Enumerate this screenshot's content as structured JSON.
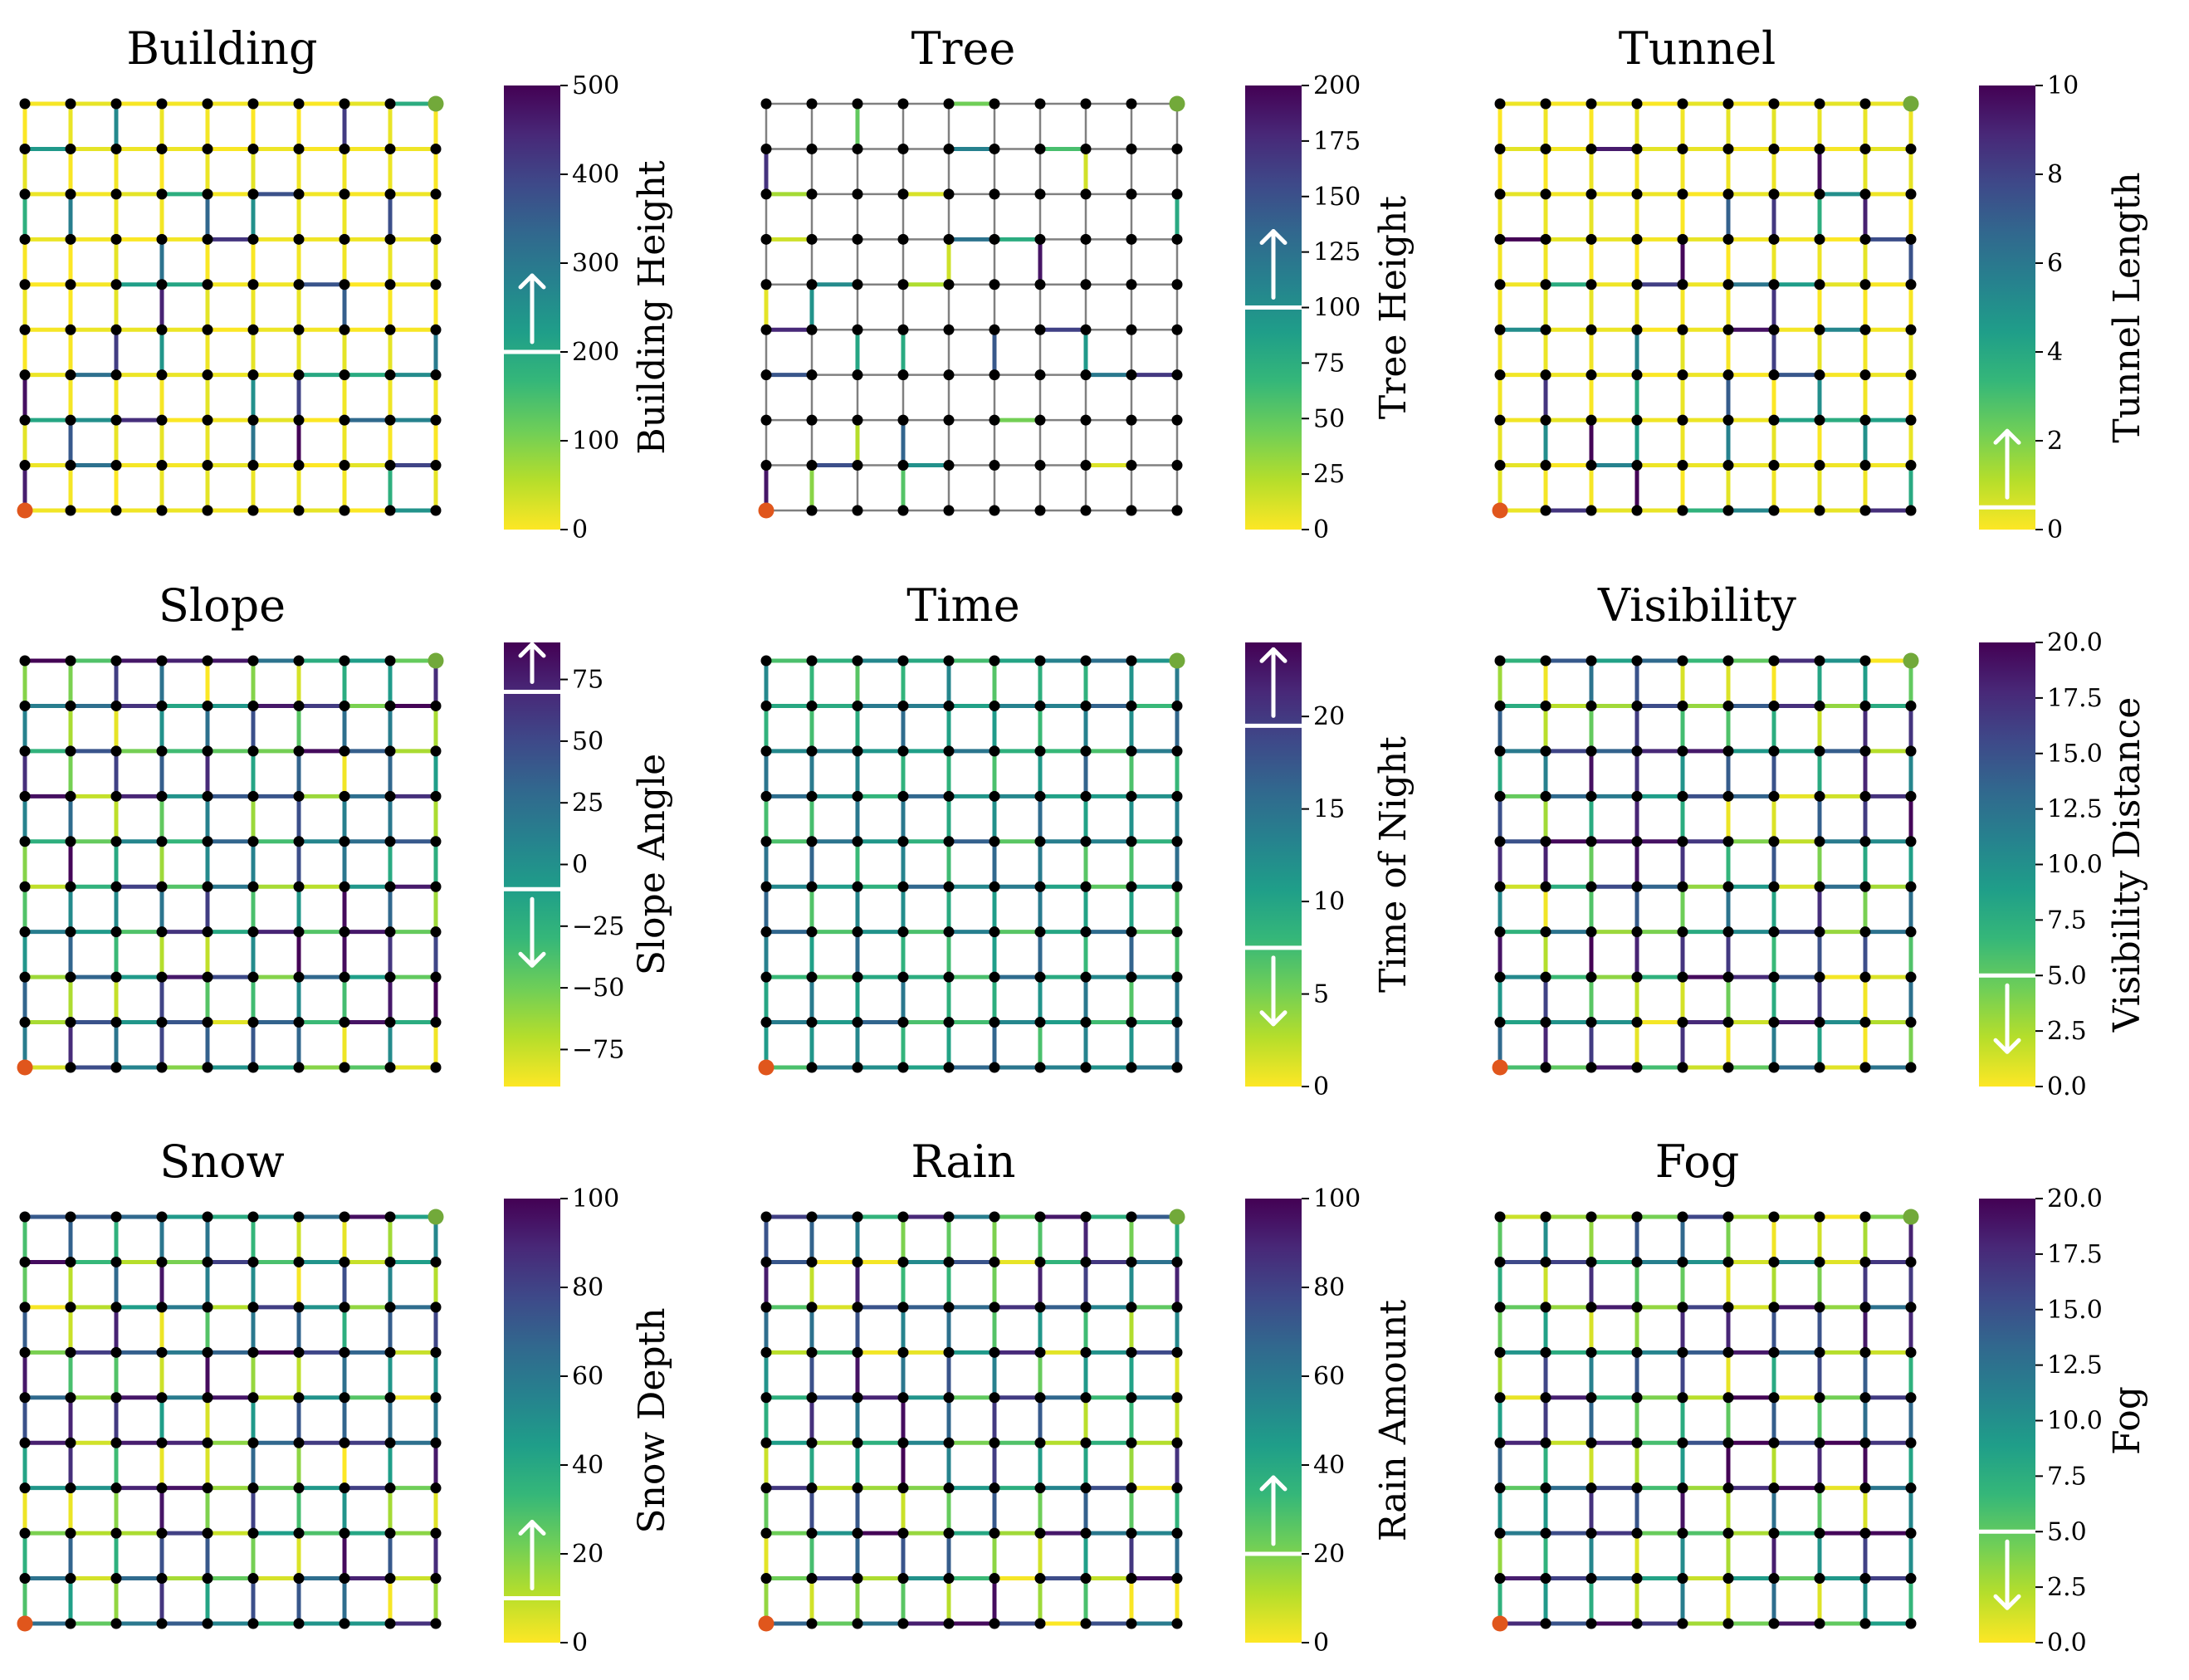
{
  "chart_data": [
    {
      "type": "heatmap",
      "title": "Building",
      "cbar_label": "Building Height",
      "vmin": 0,
      "vmax": 500,
      "ticks": [
        0,
        100,
        200,
        300,
        400,
        500
      ],
      "tick_labels": [
        "0",
        "100",
        "200",
        "300",
        "400",
        "500"
      ],
      "thresholds": [
        {
          "value": 200,
          "direction": "up"
        }
      ],
      "seed": 11,
      "style": "bright"
    },
    {
      "type": "heatmap",
      "title": "Tree",
      "cbar_label": "Tree Height",
      "vmin": 0,
      "vmax": 200,
      "ticks": [
        0,
        25,
        50,
        75,
        100,
        125,
        150,
        175,
        200
      ],
      "tick_labels": [
        "0",
        "25",
        "50",
        "75",
        "100",
        "125",
        "150",
        "175",
        "200"
      ],
      "thresholds": [
        {
          "value": 100,
          "direction": "up"
        }
      ],
      "seed": 23,
      "style": "sparse"
    },
    {
      "type": "heatmap",
      "title": "Tunnel",
      "cbar_label": "Tunnel Length",
      "vmin": 0,
      "vmax": 10,
      "ticks": [
        0,
        2,
        4,
        6,
        8,
        10
      ],
      "tick_labels": [
        "0",
        "2",
        "4",
        "6",
        "8",
        "10"
      ],
      "thresholds": [
        {
          "value": 0.5,
          "direction": "up"
        }
      ],
      "seed": 37,
      "style": "bright"
    },
    {
      "type": "heatmap",
      "title": "Slope",
      "cbar_label": "Slope Angle",
      "vmin": -90,
      "vmax": 90,
      "ticks": [
        -75,
        -50,
        -25,
        0,
        25,
        50,
        75
      ],
      "tick_labels": [
        "−75",
        "−50",
        "−25",
        "0",
        "25",
        "50",
        "75"
      ],
      "thresholds": [
        {
          "value": 70,
          "direction": "up"
        },
        {
          "value": -10,
          "direction": "down"
        }
      ],
      "seed": 41,
      "style": "uniform"
    },
    {
      "type": "heatmap",
      "title": "Time",
      "cbar_label": "Time of Night",
      "vmin": 0,
      "vmax": 24,
      "ticks": [
        0,
        5,
        10,
        15,
        20
      ],
      "tick_labels": [
        "0",
        "5",
        "10",
        "15",
        "20"
      ],
      "thresholds": [
        {
          "value": 19.5,
          "direction": "up"
        },
        {
          "value": 7.5,
          "direction": "down"
        }
      ],
      "seed": 53,
      "style": "gradient"
    },
    {
      "type": "heatmap",
      "title": "Visibility",
      "cbar_label": "Visibility Distance",
      "vmin": 0,
      "vmax": 20,
      "ticks": [
        0,
        2.5,
        5,
        7.5,
        10,
        12.5,
        15,
        17.5,
        20
      ],
      "tick_labels": [
        "0.0",
        "2.5",
        "5.0",
        "7.5",
        "10.0",
        "12.5",
        "15.0",
        "17.5",
        "20.0"
      ],
      "thresholds": [
        {
          "value": 5,
          "direction": "down"
        }
      ],
      "seed": 67,
      "style": "uniform"
    },
    {
      "type": "heatmap",
      "title": "Snow",
      "cbar_label": "Snow Depth",
      "vmin": 0,
      "vmax": 100,
      "ticks": [
        0,
        20,
        40,
        60,
        80,
        100
      ],
      "tick_labels": [
        "0",
        "20",
        "40",
        "60",
        "80",
        "100"
      ],
      "thresholds": [
        {
          "value": 10,
          "direction": "up"
        }
      ],
      "seed": 71,
      "style": "uniform"
    },
    {
      "type": "heatmap",
      "title": "Rain",
      "cbar_label": "Rain Amount",
      "vmin": 0,
      "vmax": 100,
      "ticks": [
        0,
        20,
        40,
        60,
        80,
        100
      ],
      "tick_labels": [
        "0",
        "20",
        "40",
        "60",
        "80",
        "100"
      ],
      "thresholds": [
        {
          "value": 20,
          "direction": "up"
        }
      ],
      "seed": 83,
      "style": "uniform"
    },
    {
      "type": "heatmap",
      "title": "Fog",
      "cbar_label": "Fog",
      "vmin": 0,
      "vmax": 20,
      "ticks": [
        0,
        2.5,
        5,
        7.5,
        10,
        12.5,
        15,
        17.5,
        20
      ],
      "tick_labels": [
        "0.0",
        "2.5",
        "5.0",
        "7.5",
        "10.0",
        "12.5",
        "15.0",
        "17.5",
        "20.0"
      ],
      "thresholds": [
        {
          "value": 5,
          "direction": "down"
        }
      ],
      "seed": 97,
      "style": "uniform"
    }
  ],
  "grid": {
    "rows": 10,
    "cols": 10
  },
  "colors": {
    "start_node": "#e0561c",
    "goal_node": "#72a93a",
    "node": "#000000",
    "inactive_edge": "#808080",
    "marker": "#ffffff"
  }
}
